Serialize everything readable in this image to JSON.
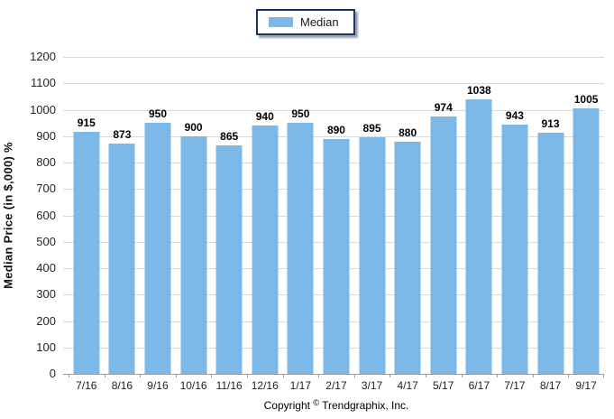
{
  "chart_data": {
    "type": "bar",
    "title": "",
    "categories": [
      "7/16",
      "8/16",
      "9/16",
      "10/16",
      "11/16",
      "12/16",
      "1/17",
      "2/17",
      "3/17",
      "4/17",
      "5/17",
      "6/17",
      "7/17",
      "8/17",
      "9/17"
    ],
    "series": [
      {
        "name": "Median",
        "values": [
          915,
          873,
          950,
          900,
          865,
          940,
          950,
          890,
          895,
          880,
          974,
          1038,
          943,
          913,
          1005
        ],
        "color": "#7CB9E8"
      }
    ],
    "xlabel": "",
    "ylabel": "Median Price (in $,000) %",
    "ylim": [
      0,
      1200
    ],
    "ytick_step": 100,
    "grid": "horizontal",
    "legend_position": "top",
    "value_labels": true
  },
  "colors": {
    "bar": "#7CB9E8",
    "gridline": "#DADADA",
    "axis": "#9B9B9B",
    "tick_text": "#262626",
    "legend_border": "#17375E"
  },
  "footer": {
    "copyright_prefix": "Copyright",
    "copyright_symbol": "©",
    "copyright_rest": "Trendgraphix, Inc."
  }
}
